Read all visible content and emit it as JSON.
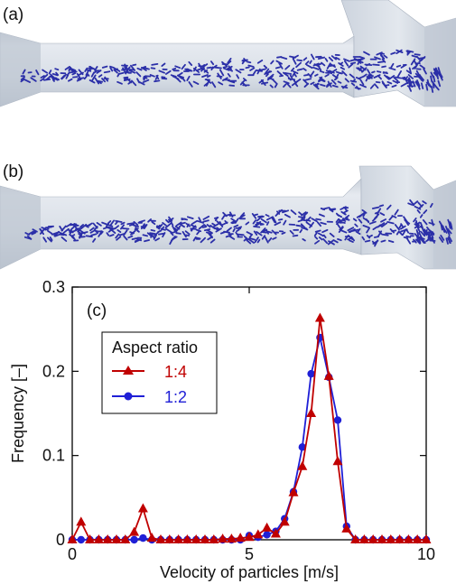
{
  "panel_labels": {
    "a": "(a)",
    "b": "(b)",
    "c": "(c)"
  },
  "colors": {
    "series_1_4": "#c00000",
    "series_1_2": "#1f1fd6",
    "particles": "#2b2fa8",
    "pipe_fill": "#d7dde6",
    "pipe_shade": "#b9c2ce"
  },
  "chart_data": {
    "type": "line",
    "xlabel": "Velocity of particles [m/s]",
    "ylabel": "Frequency [–]",
    "xlim": [
      0,
      10
    ],
    "ylim": [
      0,
      0.3
    ],
    "x_ticks": [
      "0",
      "5",
      "10"
    ],
    "y_ticks": [
      "0",
      "0.1",
      "0.2",
      "0.3"
    ],
    "legend_title": "Aspect ratio",
    "legend_position": "upper-left",
    "grid": false,
    "series": [
      {
        "name": "1:4",
        "marker": "triangle",
        "x": [
          0,
          0.25,
          0.5,
          0.75,
          1,
          1.25,
          1.5,
          1.75,
          2,
          2.25,
          2.5,
          2.75,
          3,
          3.25,
          3.5,
          3.75,
          4,
          4.25,
          4.5,
          4.75,
          5,
          5.25,
          5.5,
          5.75,
          6,
          6.25,
          6.5,
          6.75,
          7,
          7.25,
          7.5,
          7.75,
          8,
          8.25,
          8.5,
          8.75,
          9,
          9.25,
          9.5,
          9.75,
          10
        ],
        "values": [
          0,
          0.021,
          0,
          0,
          0,
          0,
          0,
          0.009,
          0.037,
          0.002,
          0,
          0,
          0,
          0,
          0,
          0,
          0,
          0.001,
          0.001,
          0.002,
          0.003,
          0.006,
          0.014,
          0.007,
          0.021,
          0.056,
          0.087,
          0.15,
          0.263,
          0.194,
          0.093,
          0.013,
          0,
          0,
          0,
          0,
          0,
          0,
          0,
          0,
          0
        ]
      },
      {
        "name": "1:2",
        "marker": "circle",
        "x": [
          0,
          0.25,
          0.5,
          0.75,
          1,
          1.25,
          1.5,
          1.75,
          2,
          2.25,
          2.5,
          2.75,
          3,
          3.25,
          3.5,
          3.75,
          4,
          4.25,
          4.5,
          4.75,
          5,
          5.25,
          5.5,
          5.75,
          6,
          6.25,
          6.5,
          6.75,
          7,
          7.25,
          7.5,
          7.75,
          8,
          8.25,
          8.5,
          8.75,
          9,
          9.25,
          9.5,
          9.75,
          10
        ],
        "values": [
          0,
          0,
          0,
          0,
          0,
          0,
          0,
          0,
          0.002,
          0,
          0,
          0,
          0,
          0,
          0,
          0,
          0,
          0,
          0,
          0,
          0.005,
          0.003,
          0.006,
          0.01,
          0.025,
          0.057,
          0.11,
          0.197,
          0.24,
          0.193,
          0.142,
          0.016,
          0,
          0,
          0,
          0,
          0,
          0,
          0,
          0,
          0
        ]
      }
    ]
  }
}
